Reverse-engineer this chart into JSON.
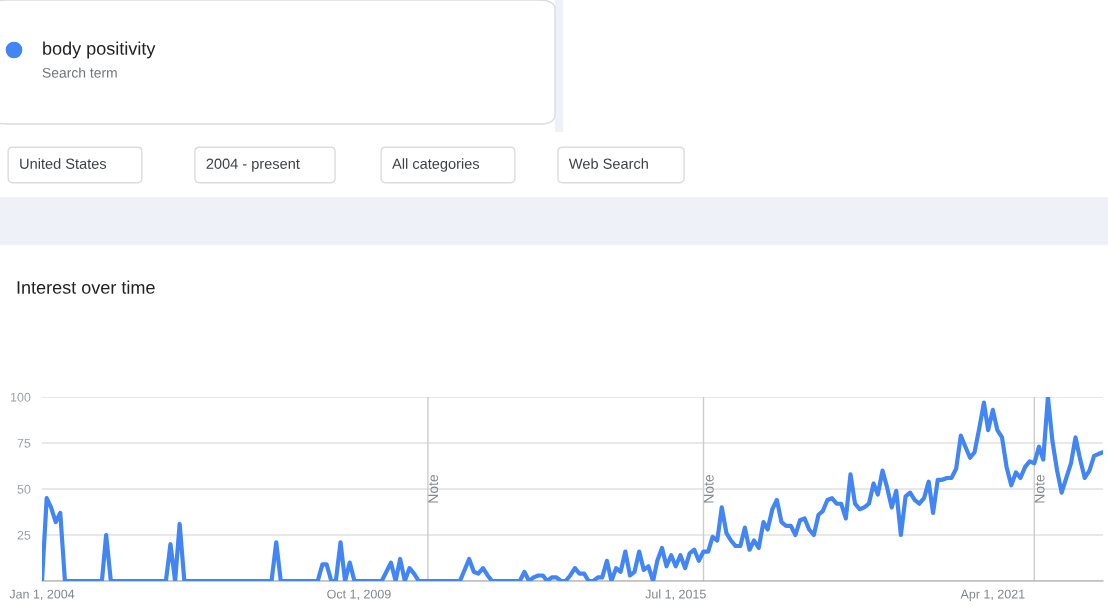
{
  "chart_data": {
    "type": "line",
    "title": "Interest over time",
    "x": [
      "2004-01",
      "2004-02",
      "2004-03",
      "2004-04",
      "2004-05",
      "2004-06",
      "2004-07",
      "2004-08",
      "2004-09",
      "2004-10",
      "2004-11",
      "2004-12",
      "2005-01",
      "2005-02",
      "2005-03",
      "2005-04",
      "2005-05",
      "2005-06",
      "2005-07",
      "2005-08",
      "2005-09",
      "2005-10",
      "2005-11",
      "2005-12",
      "2006-01",
      "2006-02",
      "2006-03",
      "2006-04",
      "2006-05",
      "2006-06",
      "2006-07",
      "2006-08",
      "2006-09",
      "2006-10",
      "2006-11",
      "2006-12",
      "2007-01",
      "2007-02",
      "2007-03",
      "2007-04",
      "2007-05",
      "2007-06",
      "2007-07",
      "2007-08",
      "2007-09",
      "2007-10",
      "2007-11",
      "2007-12",
      "2008-01",
      "2008-02",
      "2008-03",
      "2008-04",
      "2008-05",
      "2008-06",
      "2008-07",
      "2008-08",
      "2008-09",
      "2008-10",
      "2008-11",
      "2008-12",
      "2009-01",
      "2009-02",
      "2009-03",
      "2009-04",
      "2009-05",
      "2009-06",
      "2009-07",
      "2009-08",
      "2009-09",
      "2009-10",
      "2009-11",
      "2009-12",
      "2010-01",
      "2010-02",
      "2010-03",
      "2010-04",
      "2010-05",
      "2010-06",
      "2010-07",
      "2010-08",
      "2010-09",
      "2010-10",
      "2010-11",
      "2010-12",
      "2011-01",
      "2011-02",
      "2011-03",
      "2011-04",
      "2011-05",
      "2011-06",
      "2011-07",
      "2011-08",
      "2011-09",
      "2011-10",
      "2011-11",
      "2011-12",
      "2012-01",
      "2012-02",
      "2012-03",
      "2012-04",
      "2012-05",
      "2012-06",
      "2012-07",
      "2012-08",
      "2012-09",
      "2012-10",
      "2012-11",
      "2012-12",
      "2013-01",
      "2013-02",
      "2013-03",
      "2013-04",
      "2013-05",
      "2013-06",
      "2013-07",
      "2013-08",
      "2013-09",
      "2013-10",
      "2013-11",
      "2013-12",
      "2014-01",
      "2014-02",
      "2014-03",
      "2014-04",
      "2014-05",
      "2014-06",
      "2014-07",
      "2014-08",
      "2014-09",
      "2014-10",
      "2014-11",
      "2014-12",
      "2015-01",
      "2015-02",
      "2015-03",
      "2015-04",
      "2015-05",
      "2015-06",
      "2015-07",
      "2015-08",
      "2015-09",
      "2015-10",
      "2015-11",
      "2015-12",
      "2016-01",
      "2016-02",
      "2016-03",
      "2016-04",
      "2016-05",
      "2016-06",
      "2016-07",
      "2016-08",
      "2016-09",
      "2016-10",
      "2016-11",
      "2016-12",
      "2017-01",
      "2017-02",
      "2017-03",
      "2017-04",
      "2017-05",
      "2017-06",
      "2017-07",
      "2017-08",
      "2017-09",
      "2017-10",
      "2017-11",
      "2017-12",
      "2018-01",
      "2018-02",
      "2018-03",
      "2018-04",
      "2018-05",
      "2018-06",
      "2018-07",
      "2018-08",
      "2018-09",
      "2018-10",
      "2018-11",
      "2018-12",
      "2019-01",
      "2019-02",
      "2019-03",
      "2019-04",
      "2019-05",
      "2019-06",
      "2019-07",
      "2019-08",
      "2019-09",
      "2019-10",
      "2019-11",
      "2019-12",
      "2020-01",
      "2020-02",
      "2020-03",
      "2020-04",
      "2020-05",
      "2020-06",
      "2020-07",
      "2020-08",
      "2020-09",
      "2020-10",
      "2020-11",
      "2020-12",
      "2021-01",
      "2021-02",
      "2021-03",
      "2021-04",
      "2021-05",
      "2021-06",
      "2021-07",
      "2021-08",
      "2021-09",
      "2021-10",
      "2021-11",
      "2021-12",
      "2022-01",
      "2022-02",
      "2022-03",
      "2022-04",
      "2022-05",
      "2022-06",
      "2022-07",
      "2022-08",
      "2022-09",
      "2022-10",
      "2022-11",
      "2022-12",
      "2023-01",
      "2023-02",
      "2023-03",
      "2023-04"
    ],
    "series": [
      {
        "name": "body positivity",
        "color": "#4285f4",
        "values": [
          0,
          45,
          40,
          32,
          37,
          0,
          0,
          0,
          0,
          0,
          0,
          0,
          0,
          0,
          25,
          0,
          0,
          0,
          0,
          0,
          0,
          0,
          0,
          0,
          0,
          0,
          0,
          0,
          20,
          0,
          31,
          0,
          0,
          0,
          0,
          0,
          0,
          0,
          0,
          0,
          0,
          0,
          0,
          0,
          0,
          0,
          0,
          0,
          0,
          0,
          0,
          21,
          0,
          0,
          0,
          0,
          0,
          0,
          0,
          0,
          0,
          9,
          9,
          0,
          0,
          21,
          0,
          10,
          0,
          0,
          0,
          0,
          0,
          0,
          0,
          5,
          10,
          0,
          12,
          0,
          7,
          4,
          0,
          0,
          0,
          0,
          0,
          0,
          0,
          0,
          0,
          0,
          6,
          12,
          5,
          4,
          7,
          3,
          0,
          0,
          0,
          0,
          0,
          0,
          0,
          5,
          0,
          2,
          3,
          3,
          0,
          2,
          2,
          0,
          0,
          3,
          7,
          4,
          4,
          0,
          0,
          2,
          2,
          11,
          0,
          7,
          5,
          16,
          3,
          5,
          16,
          6,
          8,
          0,
          11,
          18,
          8,
          14,
          8,
          14,
          7,
          15,
          17,
          11,
          16,
          16,
          24,
          22,
          40,
          26,
          22,
          19,
          19,
          29,
          17,
          22,
          18,
          32,
          28,
          39,
          44,
          32,
          30,
          30,
          25,
          33,
          34,
          28,
          25,
          36,
          38,
          44,
          45,
          42,
          42,
          34,
          58,
          42,
          39,
          40,
          42,
          53,
          47,
          60,
          51,
          40,
          49,
          25,
          46,
          48,
          44,
          42,
          45,
          54,
          37,
          55,
          55,
          56,
          56,
          61,
          79,
          73,
          67,
          70,
          83,
          97,
          82,
          93,
          82,
          78,
          62,
          52,
          59,
          56,
          62,
          65,
          64,
          73,
          66,
          100,
          76,
          60,
          48,
          56,
          64,
          78,
          66,
          56,
          60,
          68,
          69,
          70
        ]
      }
    ],
    "xlim": [
      "2004-01",
      "2023-04"
    ],
    "xticks": [
      {
        "value": "2004-01-01",
        "label": "Jan 1, 2004"
      },
      {
        "value": "2009-10-01",
        "label": "Oct 1, 2009"
      },
      {
        "value": "2015-07-01",
        "label": "Jul 1, 2015"
      },
      {
        "value": "2021-04-01",
        "label": "Apr 1, 2021"
      }
    ],
    "ylim": [
      0,
      100
    ],
    "yticks": [
      {
        "value": 0,
        "label": null
      },
      25,
      50,
      75,
      100
    ],
    "grid": "y",
    "legend": "top left",
    "marker": "none",
    "line_style": "solid",
    "ref_lines": [
      {
        "axis": "x",
        "value": "2011-01",
        "label": "Note",
        "color": "#cccccc"
      },
      {
        "axis": "x",
        "value": "2016-01",
        "label": "Note",
        "color": "#cccccc"
      },
      {
        "axis": "x",
        "value": "2022-01",
        "label": "Note",
        "color": "#cccccc"
      }
    ],
    "annotations": [
      "Search term",
      "United States",
      "2004 - present",
      "All categories",
      "Web Search"
    ]
  }
}
